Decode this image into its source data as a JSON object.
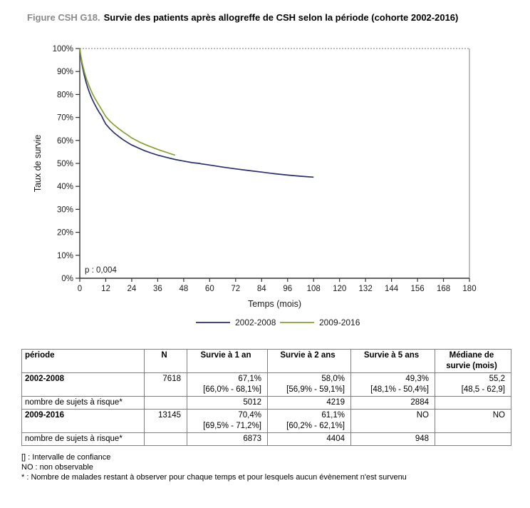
{
  "title": {
    "label": "Figure CSH G18.",
    "label_color": "#8a8a8a",
    "text": "Survie des patients après allogreffe de CSH selon la période (cohorte 2002-2016)"
  },
  "chart_data": {
    "type": "line",
    "title": "",
    "xlabel": "Temps (mois)",
    "ylabel": "Taux de survie",
    "xlim": [
      0,
      180
    ],
    "ylim": [
      0,
      100
    ],
    "x_tick_step": 12,
    "y_tick_step": 10,
    "y_tick_suffix": "%",
    "grid": "off",
    "top_reference_line": 100,
    "legend_position": "bottom",
    "annotation": "p : 0,004",
    "series": [
      {
        "name": "2002-2008",
        "color": "#292e6d",
        "points": [
          [
            0,
            100
          ],
          [
            0.5,
            96.2
          ],
          [
            1,
            93.3
          ],
          [
            1.5,
            90.8
          ],
          [
            2,
            88.6
          ],
          [
            3,
            85
          ],
          [
            4,
            82
          ],
          [
            5,
            79.5
          ],
          [
            6,
            77.4
          ],
          [
            7,
            75.5
          ],
          [
            8,
            73.8
          ],
          [
            9,
            72.2
          ],
          [
            10,
            70.8
          ],
          [
            11,
            68.9
          ],
          [
            12,
            67.1
          ],
          [
            14,
            65.0
          ],
          [
            16,
            63.2
          ],
          [
            18,
            61.7
          ],
          [
            20,
            60.3
          ],
          [
            22,
            59.1
          ],
          [
            24,
            58.0
          ],
          [
            27,
            56.7
          ],
          [
            30,
            55.5
          ],
          [
            33,
            54.5
          ],
          [
            36,
            53.6
          ],
          [
            40,
            52.6
          ],
          [
            44,
            51.7
          ],
          [
            48,
            51.0
          ],
          [
            52,
            50.3
          ],
          [
            55.2,
            50.0
          ],
          [
            56,
            49.8
          ],
          [
            60,
            49.3
          ],
          [
            66,
            48.4
          ],
          [
            72,
            47.6
          ],
          [
            78,
            46.9
          ],
          [
            84,
            46.2
          ],
          [
            90,
            45.5
          ],
          [
            96,
            44.9
          ],
          [
            102,
            44.4
          ],
          [
            108,
            44.0
          ]
        ]
      },
      {
        "name": "2009-2016",
        "color": "#85a033",
        "points": [
          [
            0,
            100
          ],
          [
            0.5,
            96.8
          ],
          [
            1,
            94.3
          ],
          [
            1.5,
            92.1
          ],
          [
            2,
            90.2
          ],
          [
            3,
            87
          ],
          [
            4,
            84.4
          ],
          [
            5,
            82.1
          ],
          [
            6,
            80.1
          ],
          [
            7,
            78.3
          ],
          [
            8,
            76.7
          ],
          [
            9,
            75.2
          ],
          [
            10,
            73.6
          ],
          [
            11,
            72.0
          ],
          [
            12,
            70.4
          ],
          [
            14,
            68.3
          ],
          [
            16,
            66.6
          ],
          [
            18,
            65.1
          ],
          [
            20,
            63.7
          ],
          [
            22,
            62.4
          ],
          [
            24,
            61.1
          ],
          [
            26,
            60.1
          ],
          [
            28,
            59.1
          ],
          [
            30,
            58.3
          ],
          [
            32,
            57.5
          ],
          [
            34,
            56.8
          ],
          [
            36,
            56.1
          ],
          [
            38,
            55.4
          ],
          [
            40,
            54.8
          ],
          [
            42,
            54.2
          ],
          [
            44,
            53.6
          ]
        ]
      }
    ]
  },
  "table": {
    "headers": [
      "période",
      "N",
      "Survie à 1 an",
      "Survie à 2 ans",
      "Survie à 5 ans",
      "Médiane de survie (mois)"
    ],
    "rows": [
      {
        "type": "period",
        "name": "2002-2008",
        "cells": [
          [
            "2002-2008"
          ],
          [
            "7618"
          ],
          [
            "67,1%",
            "[66,0% - 68,1%]"
          ],
          [
            "58,0%",
            "[56,9% - 59,1%]"
          ],
          [
            "49,3%",
            "[48,1% - 50,4%]"
          ],
          [
            "55,2",
            "[48,5 - 62,9]"
          ]
        ]
      },
      {
        "type": "risk",
        "name": "risk-2002-2008",
        "cells": [
          [
            "nombre de sujets à risque*"
          ],
          [
            ""
          ],
          [
            "5012"
          ],
          [
            "4219"
          ],
          [
            "2884"
          ],
          [
            ""
          ]
        ]
      },
      {
        "type": "period",
        "name": "2009-2016",
        "cells": [
          [
            "2009-2016"
          ],
          [
            "13145"
          ],
          [
            "70,4%",
            "[69,5% - 71,2%]"
          ],
          [
            "61,1%",
            "[60,2% - 62,1%]"
          ],
          [
            "NO"
          ],
          [
            "NO"
          ]
        ]
      },
      {
        "type": "risk",
        "name": "risk-2009-2016",
        "cells": [
          [
            "nombre de sujets à risque*"
          ],
          [
            ""
          ],
          [
            "6873"
          ],
          [
            "4404"
          ],
          [
            "948"
          ],
          [
            ""
          ]
        ]
      }
    ]
  },
  "footnotes": [
    "[] : Intervalle de confiance",
    "NO : non observable",
    "* : Nombre de malades restant à observer pour chaque temps et pour lesquels aucun évènement n'est survenu"
  ]
}
